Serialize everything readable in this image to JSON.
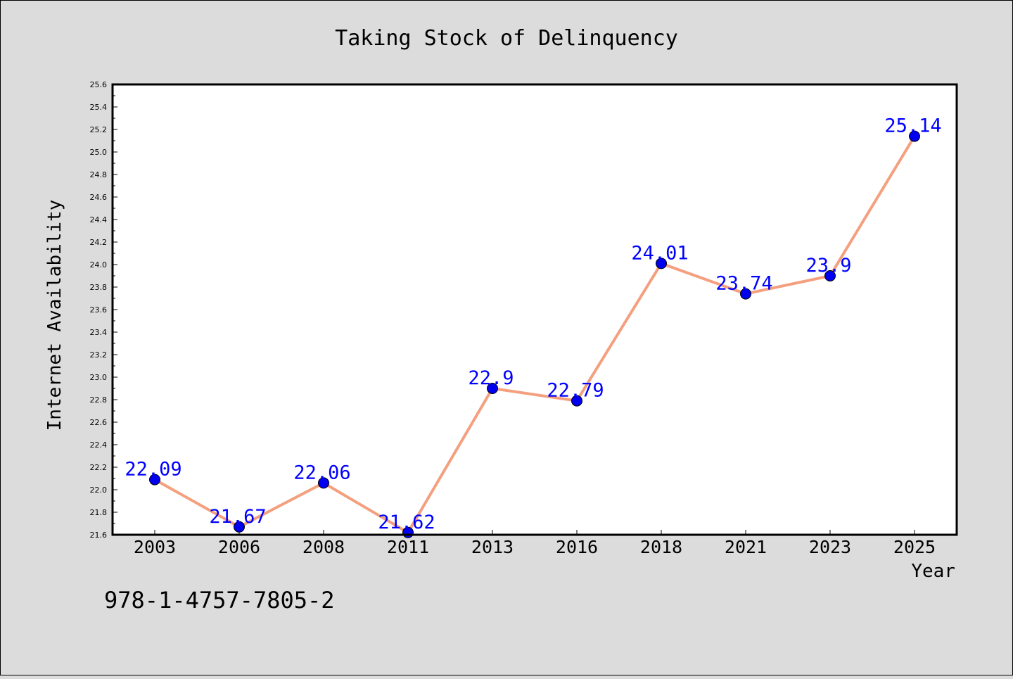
{
  "footer": {
    "text": "978-1-4757-7805-2"
  },
  "chart_data": {
    "type": "line",
    "title": "Taking Stock of Delinquency",
    "xlabel": "Year",
    "ylabel": "Internet Availability",
    "categories": [
      "2003",
      "2006",
      "2008",
      "2011",
      "2013",
      "2016",
      "2018",
      "2021",
      "2023",
      "2025"
    ],
    "series": [
      {
        "values": [
          22.09,
          21.67,
          22.06,
          21.62,
          22.9,
          22.79,
          24.01,
          23.74,
          23.9,
          25.14
        ],
        "data_labels": [
          "22.09",
          "21.67",
          "22.06",
          "21.62",
          "22.9",
          "22.79",
          "24.01",
          "23.74",
          "23.9",
          "25.14"
        ]
      }
    ],
    "ylim": [
      21.6,
      25.6
    ],
    "ytick_step": 0.2,
    "grid": false,
    "colors": {
      "line": "#f4a07f",
      "marker": "#0000ee",
      "marker_edge": "#000000",
      "data_label": "#0000ff",
      "plot_background": "#ffffff",
      "figure_background": "#dcdcdc"
    }
  }
}
